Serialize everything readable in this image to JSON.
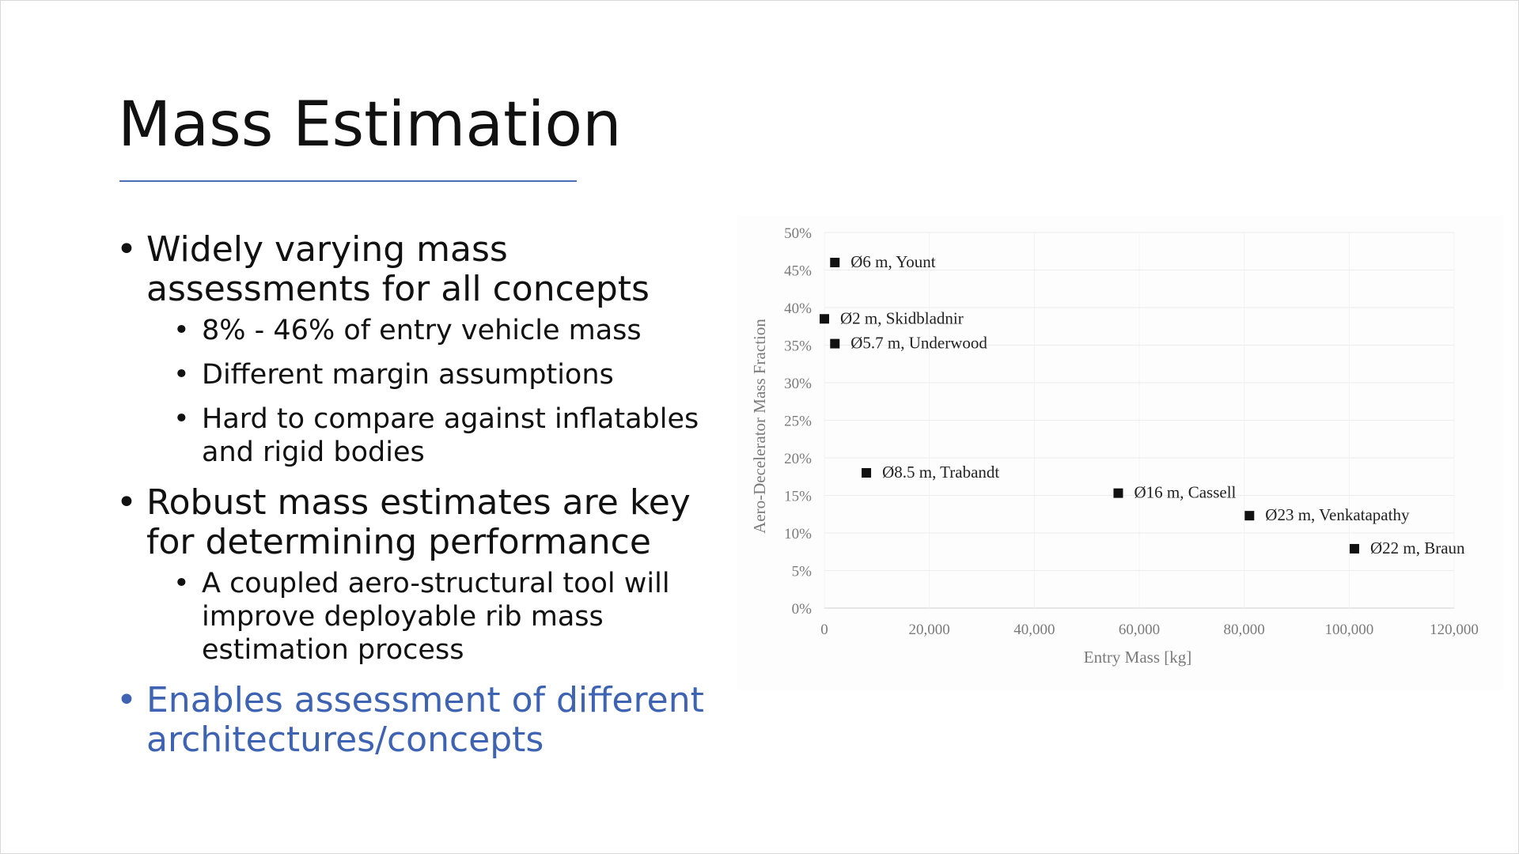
{
  "slide": {
    "title": "Mass Estimation",
    "bullets": [
      {
        "text": "Widely varying mass assessments for all concepts",
        "sub": [
          "8% - 46% of entry vehicle mass",
          "Different margin assumptions",
          "Hard to compare against inflatables and rigid bodies"
        ]
      },
      {
        "text": "Robust mass estimates are key for determining performance",
        "sub": [
          "A coupled aero-structural tool will improve deployable rib mass estimation process"
        ]
      },
      {
        "text": "Enables assessment of different architectures/concepts",
        "sub": []
      }
    ],
    "colors": {
      "accent": "#3e63b3",
      "rule": "#4a6fb5"
    }
  },
  "chart_data": {
    "type": "scatter",
    "xlabel": "Entry Mass [kg]",
    "ylabel": "Aero-Decelerator Mass Fraction",
    "xlim": [
      0,
      120000
    ],
    "ylim": [
      0,
      50
    ],
    "x_ticks": [
      "0",
      "20,000",
      "40,000",
      "60,000",
      "80,000",
      "100,000",
      "120,000"
    ],
    "y_ticks": [
      "0%",
      "5%",
      "10%",
      "15%",
      "20%",
      "25%",
      "30%",
      "35%",
      "40%",
      "45%",
      "50%"
    ],
    "grid": true,
    "points": [
      {
        "label": "Ø6 m, Yount",
        "x": 2000,
        "y": 46
      },
      {
        "label": "Ø2 m, Skidbladnir",
        "x": 0,
        "y": 38.5
      },
      {
        "label": "Ø5.7 m, Underwood",
        "x": 2000,
        "y": 35.2
      },
      {
        "label": "Ø8.5 m, Trabandt",
        "x": 8000,
        "y": 18
      },
      {
        "label": "Ø16 m, Cassell",
        "x": 56000,
        "y": 15.3
      },
      {
        "label": "Ø23 m, Venkatapathy",
        "x": 81000,
        "y": 12.3
      },
      {
        "label": "Ø22 m, Braun",
        "x": 101000,
        "y": 7.9
      }
    ]
  }
}
